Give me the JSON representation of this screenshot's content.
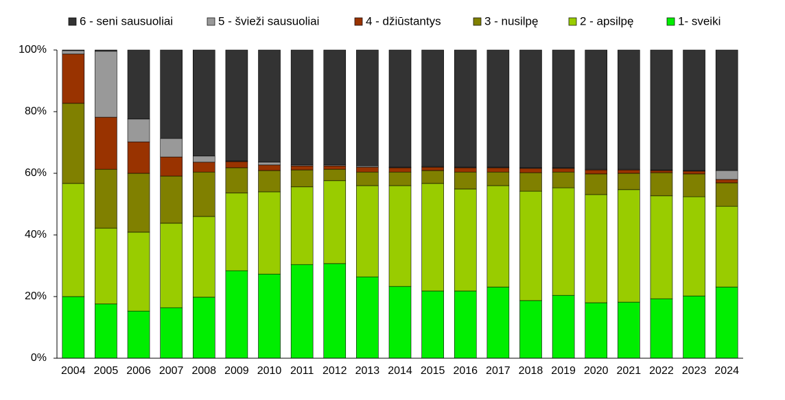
{
  "chart_data": {
    "type": "stacked_bar_percent",
    "categories": [
      "2004",
      "2005",
      "2006",
      "2007",
      "2008",
      "2009",
      "2010",
      "2011",
      "2012",
      "2013",
      "2014",
      "2015",
      "2016",
      "2017",
      "2018",
      "2019",
      "2020",
      "2021",
      "2022",
      "2023",
      "2024"
    ],
    "series": [
      {
        "name": "6 - seni sausuoliai",
        "color": "#333333",
        "values": [
          0.2,
          0.4,
          22.4,
          28.7,
          34.4,
          36,
          36.4,
          37.3,
          37.3,
          37.6,
          38,
          37.8,
          38,
          38,
          38.2,
          38.2,
          38.7,
          38.7,
          38.9,
          39.1,
          39.1
        ]
      },
      {
        "name": "5 - švieži sausuoliai",
        "color": "#999999",
        "values": [
          1.1,
          21.4,
          7.4,
          6,
          2,
          0.2,
          0.9,
          0.3,
          0.3,
          0.4,
          0.2,
          0.2,
          0.2,
          0.2,
          0.2,
          0.2,
          0.2,
          0.2,
          0.2,
          0.2,
          2.9
        ]
      },
      {
        "name": "4 - džiūstantys",
        "color": "#993300",
        "values": [
          16,
          16.9,
          10.2,
          6.2,
          3.2,
          2,
          1.8,
          1.3,
          1.1,
          1.6,
          1.4,
          1.1,
          1.4,
          1.4,
          1.4,
          1.2,
          1.3,
          1.1,
          0.7,
          0.9,
          1.1
        ]
      },
      {
        "name": "3 - nusilpę",
        "color": "#808000",
        "values": [
          26,
          19.1,
          19.1,
          15.3,
          14.4,
          8.2,
          6.9,
          5.5,
          3.7,
          4.4,
          4.4,
          4.2,
          5.5,
          4.4,
          6,
          5.1,
          6.7,
          5.3,
          7.5,
          7.4,
          7.6
        ]
      },
      {
        "name": "2 - apsilpę",
        "color": "#99cc00",
        "values": [
          36.7,
          24.6,
          25.6,
          27.4,
          26.2,
          25.2,
          26.7,
          25.2,
          26.9,
          29.6,
          32.7,
          34.9,
          33.1,
          32.9,
          35.5,
          34.9,
          35.1,
          36.5,
          33.4,
          32.2,
          26.2
        ]
      },
      {
        "name": "1- sveiki",
        "color": "#00ee00",
        "values": [
          20,
          17.6,
          15.3,
          16.4,
          19.8,
          28.4,
          27.3,
          30.4,
          30.7,
          26.4,
          23.3,
          21.8,
          21.8,
          23.1,
          18.7,
          20.4,
          18,
          18.2,
          19.3,
          20.2,
          23.1
        ]
      }
    ],
    "ylim": [
      0,
      100
    ],
    "yticks": [
      {
        "value": 0,
        "label": "0%"
      },
      {
        "value": 20,
        "label": "20%"
      },
      {
        "value": 40,
        "label": "40%"
      },
      {
        "value": 60,
        "label": "60%"
      },
      {
        "value": 80,
        "label": "80%"
      },
      {
        "value": 100,
        "label": "100%"
      }
    ],
    "legend": "top"
  }
}
